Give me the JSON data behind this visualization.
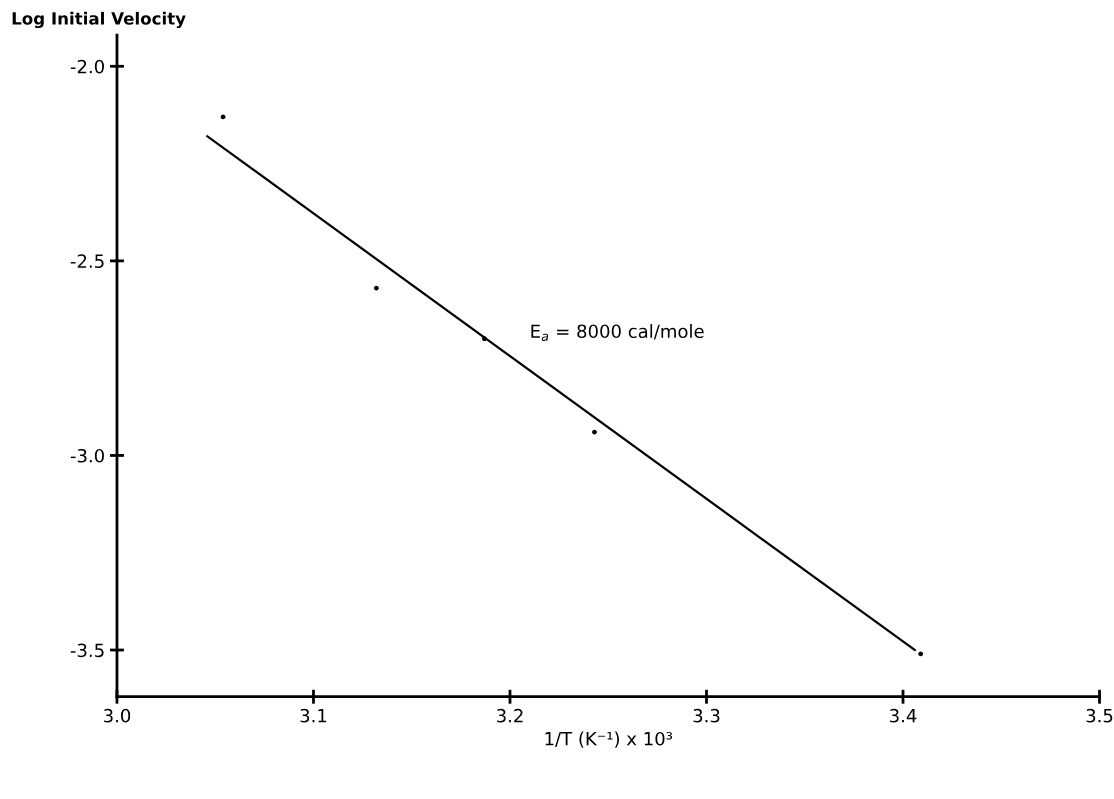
{
  "chart_data": {
    "type": "scatter",
    "ylabel": "Log Initial Velocity",
    "xlabel": "1/T (K⁻¹) x 10³",
    "annotations": [
      "E$_{a}$ = 8000 cal/mole"
    ],
    "series": [
      {
        "color": "#000000",
        "marker": "circle",
        "x": [
          3.054,
          3.132,
          3.187,
          3.243,
          3.409
        ],
        "values": [
          -2.13,
          -2.57,
          -2.7,
          -2.94,
          -3.51
        ]
      },
      {
        "type": "line",
        "color": "#000000",
        "x": [
          3.046,
          3.406
        ],
        "values": [
          -2.18,
          -3.5
        ]
      }
    ],
    "xlim": [
      3.0,
      3.5
    ],
    "xticks": [
      {
        "value": 3.0,
        "label": "3.0"
      },
      3.1,
      3.2,
      3.3,
      3.4,
      3.5
    ],
    "ylim": [
      -3.62,
      -1.92
    ],
    "yticks": [
      {
        "value": -2.0,
        "label": "-2.0"
      },
      -2.5,
      {
        "value": -3.0,
        "label": "-3.0"
      },
      -3.5
    ]
  }
}
